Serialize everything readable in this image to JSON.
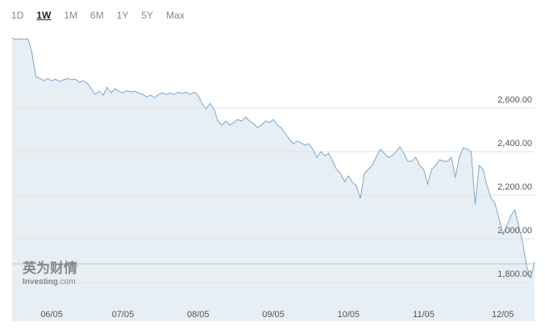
{
  "tabs": [
    "1D",
    "1W",
    "1M",
    "6M",
    "1Y",
    "5Y",
    "Max"
  ],
  "active_tab": 1,
  "chart_data": {
    "type": "area",
    "line_color": "#7aa8d0",
    "fill_color": "#e7eef4",
    "grid": true,
    "watermark": {
      "brand": "英为财情",
      "site": "Investing",
      "suffix": ".com"
    },
    "values": [
      2922,
      2915,
      2919,
      2915,
      2919,
      2856,
      2744,
      2737,
      2726,
      2737,
      2726,
      2733,
      2722,
      2730,
      2737,
      2730,
      2733,
      2719,
      2726,
      2715,
      2689,
      2663,
      2678,
      2659,
      2696,
      2670,
      2689,
      2678,
      2670,
      2681,
      2674,
      2678,
      2670,
      2663,
      2652,
      2659,
      2648,
      2663,
      2670,
      2663,
      2670,
      2663,
      2674,
      2667,
      2674,
      2663,
      2674,
      2659,
      2622,
      2596,
      2622,
      2596,
      2541,
      2522,
      2541,
      2522,
      2533,
      2548,
      2541,
      2559,
      2541,
      2530,
      2511,
      2522,
      2541,
      2533,
      2548,
      2522,
      2511,
      2485,
      2459,
      2437,
      2448,
      2441,
      2430,
      2437,
      2411,
      2374,
      2400,
      2381,
      2393,
      2356,
      2319,
      2300,
      2263,
      2289,
      2259,
      2244,
      2185,
      2300,
      2319,
      2337,
      2374,
      2411,
      2393,
      2374,
      2381,
      2400,
      2422,
      2393,
      2356,
      2356,
      2374,
      2337,
      2319,
      2252,
      2319,
      2337,
      2363,
      2356,
      2356,
      2374,
      2281,
      2374,
      2419,
      2411,
      2400,
      2159,
      2337,
      2319,
      2244,
      2189,
      2163,
      2096,
      2022,
      2059,
      2104,
      2133,
      2059,
      1985,
      1874,
      1819,
      1893
    ],
    "xlim": [
      0,
      132
    ],
    "xticks": [
      {
        "value": 10,
        "label": "06/05"
      },
      {
        "value": 28,
        "label": "07/05"
      },
      {
        "value": 47,
        "label": "08/05"
      },
      {
        "value": 66,
        "label": "09/05"
      },
      {
        "value": 85,
        "label": "10/05"
      },
      {
        "value": 104,
        "label": "11/05"
      },
      {
        "value": 124,
        "label": "12/05"
      }
    ],
    "ylim": [
      1622,
      2941
    ],
    "yticks": [
      {
        "value": 1800,
        "label": "1,800.00"
      },
      {
        "value": 2000,
        "label": "2,000.00"
      },
      {
        "value": 2200,
        "label": "2,200.00"
      },
      {
        "value": 2400,
        "label": "2,400.00"
      },
      {
        "value": 2600,
        "label": "2,600.00"
      }
    ],
    "current_line": 1885,
    "current_line_color": "#b9c9b0"
  }
}
